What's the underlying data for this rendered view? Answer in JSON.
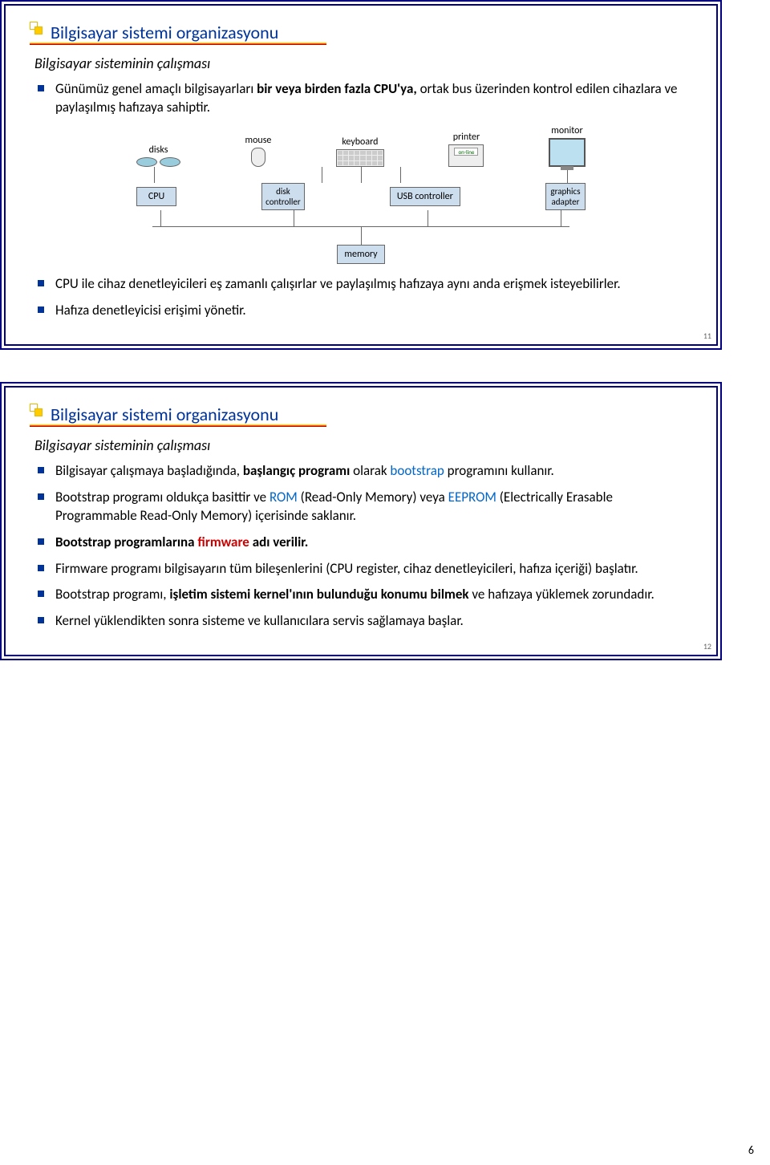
{
  "page_number": "6",
  "slide1": {
    "num": "11",
    "title": "Bilgisayar sistemi organizasyonu",
    "subtitle": "Bilgisayar sisteminin çalışması",
    "title_line_colors": [
      "#ffcc00",
      "#cc0000"
    ],
    "bullets": {
      "b1_pre": "Günümüz genel amaçlı bilgisayarları ",
      "b1_bold": "bir veya birden fazla CPU'ya, ",
      "b1_post": "ortak bus üzerinden kontrol edilen cihazlara ve paylaşılmış hafızaya sahiptir.",
      "b2": "CPU ile cihaz denetleyicileri eş zamanlı çalışırlar ve paylaşılmış hafızaya aynı anda erişmek isteyebilirler.",
      "b3": "Hafıza denetleyicisi erişimi yönetir."
    },
    "diagram": {
      "labels": {
        "disks": "disks",
        "mouse": "mouse",
        "keyboard": "keyboard",
        "printer": "printer",
        "monitor": "monitor",
        "online": "on-line",
        "cpu": "CPU",
        "disk_ctrl": "disk\ncontroller",
        "usb_ctrl": "USB controller",
        "gfx": "graphics\nadapter",
        "memory": "memory"
      },
      "box_bg": "#ccddee",
      "box_border": "#666666",
      "device_fill": "#eeeeee",
      "disk_fill": "#99ccdd",
      "monitor_screen": "#bde0f0",
      "line_color": "#666666"
    }
  },
  "slide2": {
    "num": "12",
    "title": "Bilgisayar sistemi organizasyonu",
    "subtitle": "Bilgisayar sisteminin çalışması",
    "bullets": {
      "b1_pre": "Bilgisayar çalışmaya başladığında, ",
      "b1_bold": "başlangıç programı",
      "b1_mid": " olarak ",
      "b1_blue": "bootstrap",
      "b1_post": " programını kullanır.",
      "b2_pre": "Bootstrap programı oldukça basittir ve ",
      "b2_rom": "ROM",
      "b2_mid1": " (Read-Only Memory) veya ",
      "b2_eeprom": "EEPROM",
      "b2_post": " (Electrically Erasable Programmable Read-Only Memory) içerisinde saklanır.",
      "b3_pre": "Bootstrap programlarına ",
      "b3_fw": "firmware",
      "b3_post": " adı verilir.",
      "b4": "Firmware programı bilgisayarın tüm bileşenlerini (CPU register, cihaz denetleyicileri, hafıza içeriği) başlatır.",
      "b5_pre": "Bootstrap programı, ",
      "b5_bold": "işletim sistemi kernel'ının bulunduğu konumu bilmek",
      "b5_post": " ve hafızaya yüklemek zorundadır.",
      "b6": "Kernel yüklendikten sonra sisteme ve kullanıcılara servis sağlamaya başlar."
    }
  }
}
